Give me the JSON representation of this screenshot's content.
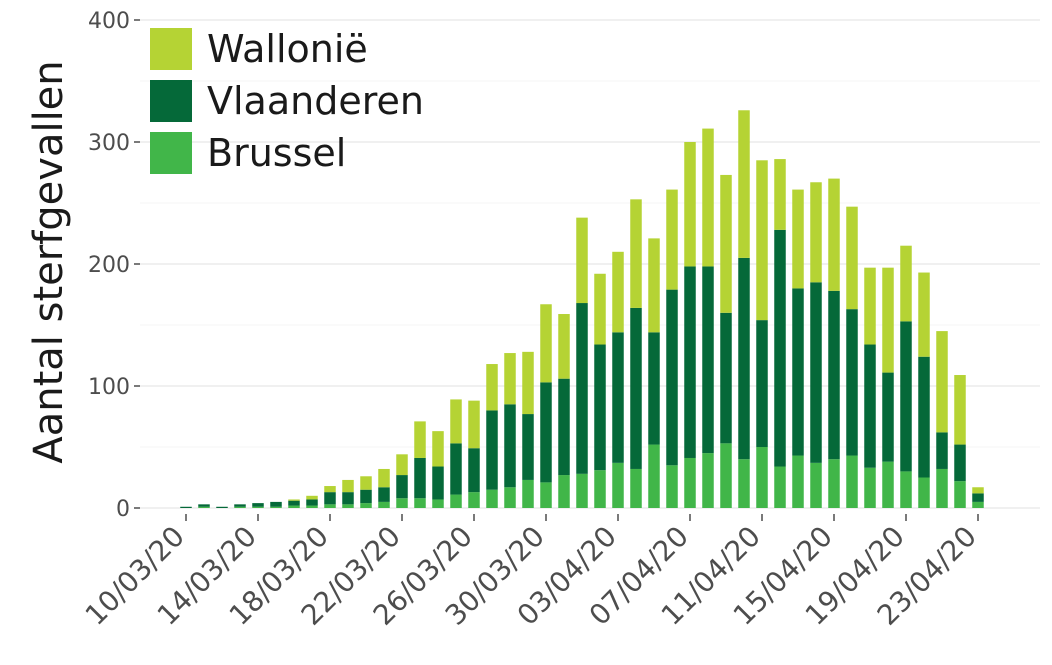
{
  "chart_data": {
    "type": "bar",
    "stacked": true,
    "title": "",
    "xlabel": "",
    "ylabel": "Aantal sterfgevallen",
    "ylim": [
      0,
      400
    ],
    "yticks": [
      0,
      100,
      200,
      300,
      400
    ],
    "xtick_labels": [
      "10/03/20",
      "14/03/20",
      "18/03/20",
      "22/03/20",
      "26/03/20",
      "30/03/20",
      "03/04/20",
      "07/04/20",
      "11/04/20",
      "15/04/20",
      "19/04/20",
      "23/04/20"
    ],
    "xtick_every": 4,
    "grid": true,
    "legend_position": "top-left",
    "categories": [
      "10/03/20",
      "11/03/20",
      "12/03/20",
      "13/03/20",
      "14/03/20",
      "15/03/20",
      "16/03/20",
      "17/03/20",
      "18/03/20",
      "19/03/20",
      "20/03/20",
      "21/03/20",
      "22/03/20",
      "23/03/20",
      "24/03/20",
      "25/03/20",
      "26/03/20",
      "27/03/20",
      "28/03/20",
      "29/03/20",
      "30/03/20",
      "31/03/20",
      "01/04/20",
      "02/04/20",
      "03/04/20",
      "04/04/20",
      "05/04/20",
      "06/04/20",
      "07/04/20",
      "08/04/20",
      "09/04/20",
      "10/04/20",
      "11/04/20",
      "12/04/20",
      "13/04/20",
      "14/04/20",
      "15/04/20",
      "16/04/20",
      "17/04/20",
      "18/04/20",
      "19/04/20",
      "20/04/20",
      "21/04/20",
      "22/04/20",
      "23/04/20"
    ],
    "series": [
      {
        "name": "Brussel",
        "color": "#41b649",
        "values": [
          0,
          1,
          0,
          1,
          1,
          1,
          2,
          2,
          3,
          3,
          4,
          5,
          8,
          8,
          7,
          11,
          13,
          15,
          17,
          23,
          21,
          27,
          28,
          31,
          37,
          32,
          52,
          35,
          41,
          45,
          53,
          40,
          50,
          34,
          43,
          37,
          40,
          43,
          33,
          38,
          30,
          25,
          32,
          22,
          5
        ]
      },
      {
        "name": "Vlaanderen",
        "color": "#056939",
        "values": [
          1,
          2,
          1,
          2,
          3,
          4,
          4,
          5,
          10,
          10,
          11,
          12,
          19,
          33,
          27,
          42,
          36,
          65,
          68,
          54,
          82,
          79,
          140,
          103,
          107,
          132,
          92,
          144,
          157,
          153,
          107,
          165,
          104,
          194,
          137,
          148,
          138,
          120,
          101,
          73,
          123,
          99,
          30,
          30,
          7
        ]
      },
      {
        "name": "Wallonië",
        "color": "#b5d334",
        "values": [
          0,
          0,
          0,
          0,
          0,
          0,
          1,
          3,
          5,
          10,
          11,
          15,
          17,
          30,
          29,
          36,
          39,
          38,
          42,
          51,
          64,
          53,
          70,
          58,
          66,
          89,
          77,
          82,
          102,
          113,
          113,
          121,
          131,
          58,
          81,
          82,
          92,
          84,
          63,
          86,
          62,
          69,
          83,
          57,
          5
        ]
      }
    ]
  },
  "legend": {
    "items": [
      {
        "label": "Wallonië",
        "color": "#b5d334"
      },
      {
        "label": "Vlaanderen",
        "color": "#056939"
      },
      {
        "label": "Brussel",
        "color": "#41b649"
      }
    ]
  }
}
